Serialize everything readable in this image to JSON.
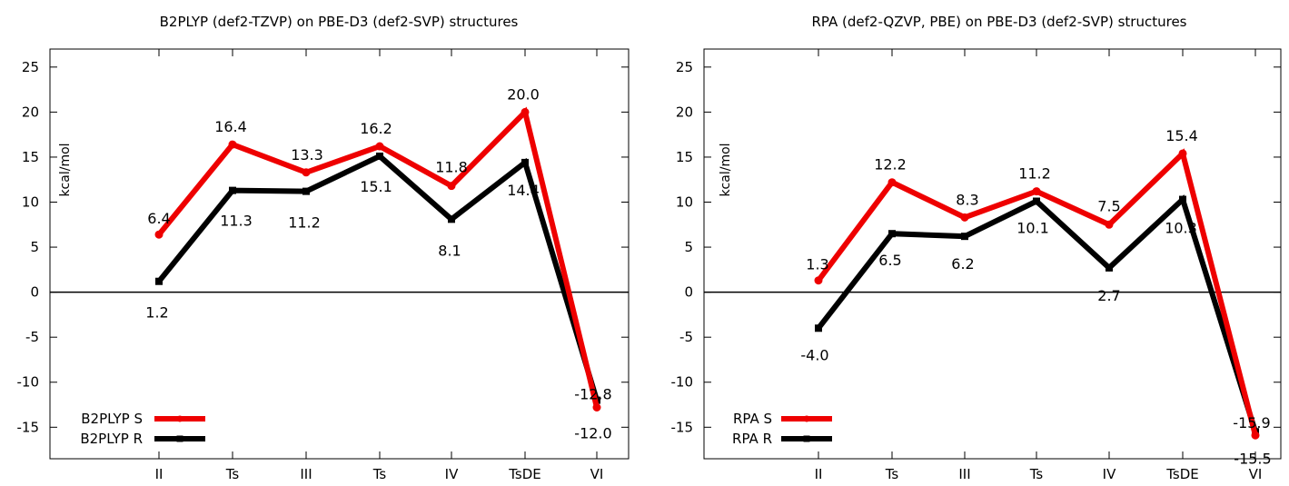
{
  "chart_data": [
    {
      "type": "line",
      "title": "B2PLYP (def2-TZVP) on PBE-D3 (def2-SVP) structures",
      "xlabel": "",
      "ylabel": "kcal/mol",
      "ylim": [
        -18.5,
        27
      ],
      "yticks": [
        -15,
        -10,
        -5,
        0,
        5,
        10,
        15,
        20,
        25
      ],
      "ytick_labels": [
        "-15",
        "-10",
        "-5",
        "0",
        "5",
        "10",
        "15",
        "20",
        "25"
      ],
      "categories": [
        "II",
        "Ts",
        "III",
        "Ts",
        "IV",
        "TsDE",
        "VI"
      ],
      "zero_line": true,
      "grid": false,
      "legend_position": "bottom-left",
      "series": [
        {
          "name": "B2PLYP S",
          "color": "#ee0000",
          "values": [
            6.4,
            16.4,
            13.3,
            16.2,
            11.8,
            20.0,
            -12.8
          ],
          "labels": [
            "6.4",
            "16.4",
            "13.3",
            "16.2",
            "11.8",
            "20.0",
            "-12.8"
          ]
        },
        {
          "name": "B2PLYP R",
          "color": "#000000",
          "values": [
            1.2,
            11.3,
            11.2,
            15.1,
            8.1,
            14.4,
            -12.0
          ],
          "labels": [
            "1.2",
            "11.3",
            "11.2",
            "15.1",
            "8.1",
            "14.4",
            "-12.0"
          ]
        }
      ]
    },
    {
      "type": "line",
      "title": "RPA (def2-QZVP, PBE) on PBE-D3 (def2-SVP) structures",
      "xlabel": "",
      "ylabel": "kcal/mol",
      "ylim": [
        -18.5,
        27
      ],
      "yticks": [
        -15,
        -10,
        -5,
        0,
        5,
        10,
        15,
        20,
        25
      ],
      "ytick_labels": [
        "-15",
        "-10",
        "-5",
        "0",
        "5",
        "10",
        "15",
        "20",
        "25"
      ],
      "categories": [
        "II",
        "Ts",
        "III",
        "Ts",
        "IV",
        "TsDE",
        "VI"
      ],
      "zero_line": true,
      "grid": false,
      "legend_position": "bottom-left",
      "series": [
        {
          "name": "RPA S",
          "color": "#ee0000",
          "values": [
            1.3,
            12.2,
            8.3,
            11.2,
            7.5,
            15.4,
            -15.9
          ],
          "labels": [
            "1.3",
            "12.2",
            "8.3",
            "11.2",
            "7.5",
            "15.4",
            "-15.9"
          ]
        },
        {
          "name": "RPA R",
          "color": "#000000",
          "values": [
            -4.0,
            6.5,
            6.2,
            10.1,
            2.7,
            10.3,
            -15.5
          ],
          "labels": [
            "-4.0",
            "6.5",
            "6.2",
            "10.1",
            "2.7",
            "10.3",
            "-15.5"
          ]
        }
      ]
    }
  ]
}
